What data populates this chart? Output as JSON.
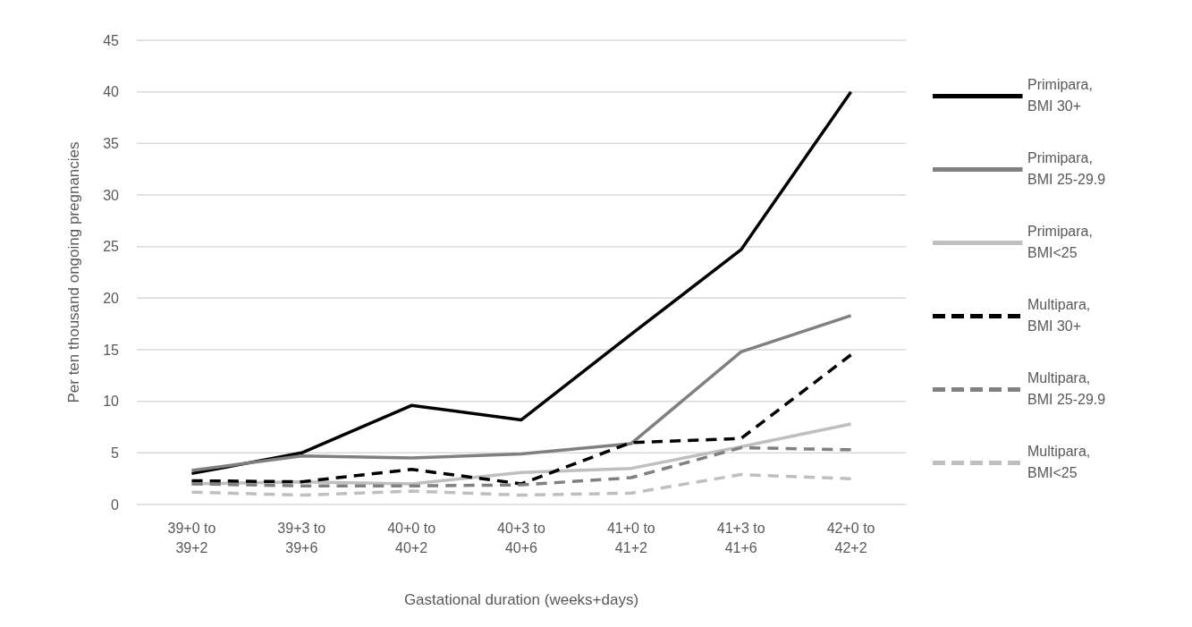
{
  "chart_data": {
    "type": "line",
    "xlabel": "Gastational duration (weeks+days)",
    "ylabel": "Per ten thousand ongoing pregnancies",
    "categories": [
      "39+0 to 39+2",
      "39+3 to 39+6",
      "40+0 to 40+2",
      "40+3 to 40+6",
      "41+0 to 41+2",
      "41+3 to 41+6",
      "42+0 to 42+2"
    ],
    "ylim": [
      0,
      45
    ],
    "yticks": [
      0,
      5,
      10,
      15,
      20,
      25,
      30,
      35,
      40,
      45
    ],
    "grid": "y",
    "legend": "right",
    "marker": "none",
    "series": [
      {
        "name": "Primipara, BMI 30+",
        "color": "#000000",
        "line_style": "solid",
        "values": [
          3.0,
          5.0,
          9.6,
          8.2,
          16.5,
          24.7,
          40
        ]
      },
      {
        "name": "Primipara, BMI 25-29.9",
        "color": "#808080",
        "line_style": "solid",
        "values": [
          3.3,
          4.7,
          4.5,
          4.9,
          5.9,
          14.8,
          18.3
        ]
      },
      {
        "name": "Primipara, BMI<25",
        "color": "#bfbfbf",
        "line_style": "solid",
        "values": [
          2.0,
          2.2,
          2.0,
          3.1,
          3.5,
          5.6,
          7.8
        ]
      },
      {
        "name": "Multipara, BMI 30+",
        "color": "#000000",
        "line_style": "dashed",
        "values": [
          2.3,
          2.2,
          3.4,
          2.0,
          6.0,
          6.4,
          14.5
        ]
      },
      {
        "name": "Multipara, BMI 25-29.9",
        "color": "#808080",
        "line_style": "dashed",
        "values": [
          2.0,
          1.8,
          1.8,
          1.9,
          2.6,
          5.5,
          5.3
        ]
      },
      {
        "name": "Multipara, BMI<25",
        "color": "#bfbfbf",
        "line_style": "dashed",
        "values": [
          1.2,
          0.9,
          1.3,
          0.9,
          1.1,
          2.9,
          2.5
        ]
      }
    ]
  }
}
